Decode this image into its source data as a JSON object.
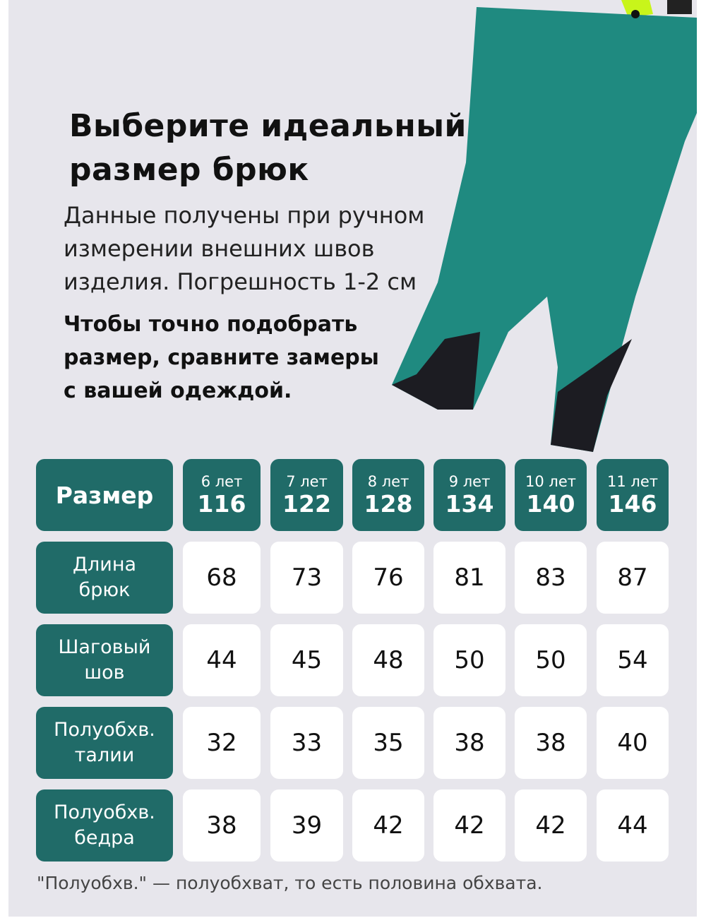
{
  "heading": {
    "title_line1": "Выберите идеальный",
    "title_line2": "размер брюк",
    "desc_line1": "Данные получены при ручном",
    "desc_line2": "измерении внешних швов",
    "desc_line3": "изделия. Погрешность 1-2 см",
    "cta_line1": "Чтобы точно подобрать",
    "cta_line2": "размер, сравните замеры",
    "cta_line3": "с вашей одеждой."
  },
  "colors": {
    "teal": "#206b68",
    "background": "#e7e6ec"
  },
  "table": {
    "header_label": "Размер",
    "sizes": [
      {
        "age": "6 лет",
        "height": "116"
      },
      {
        "age": "7 лет",
        "height": "122"
      },
      {
        "age": "8 лет",
        "height": "128"
      },
      {
        "age": "9 лет",
        "height": "134"
      },
      {
        "age": "10 лет",
        "height": "140"
      },
      {
        "age": "11 лет",
        "height": "146"
      }
    ],
    "rows": [
      {
        "label1": "Длина",
        "label2": "брюк",
        "values": [
          "68",
          "73",
          "76",
          "81",
          "83",
          "87"
        ]
      },
      {
        "label1": "Шаговый",
        "label2": "шов",
        "values": [
          "44",
          "45",
          "48",
          "50",
          "50",
          "54"
        ]
      },
      {
        "label1": "Полуобхв.",
        "label2": "талии",
        "values": [
          "32",
          "33",
          "35",
          "38",
          "38",
          "40"
        ]
      },
      {
        "label1": "Полуобхв.",
        "label2": "бедра",
        "values": [
          "38",
          "39",
          "42",
          "42",
          "42",
          "44"
        ]
      }
    ]
  },
  "footnote": "\"Полуобхв.\" — полуобхват, то есть половина обхвата."
}
